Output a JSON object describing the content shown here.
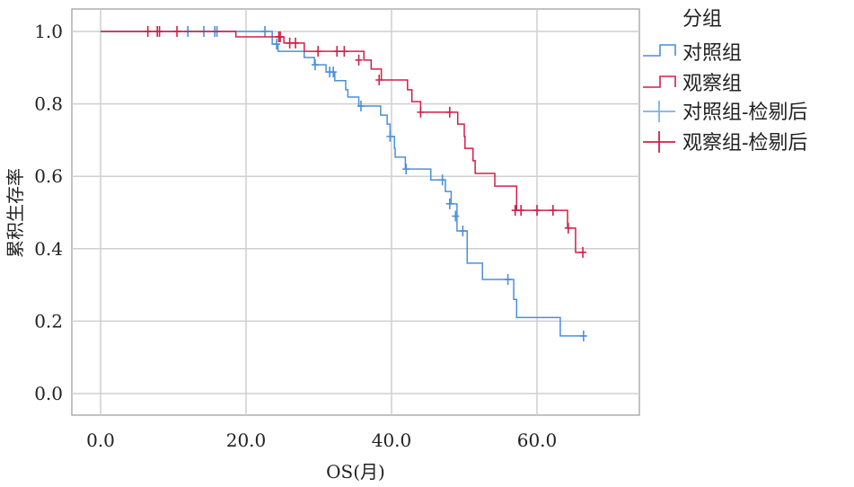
{
  "chart_data": {
    "type": "line",
    "subtype": "kaplan-meier",
    "xlabel": "OS(月)",
    "ylabel": "累积生存率",
    "xlim": [
      -4,
      74
    ],
    "ylim": [
      -0.06,
      1.06
    ],
    "xticks": [
      "0.0",
      "20.0",
      "40.0",
      "60.0"
    ],
    "xtick_values": [
      0,
      20,
      40,
      60
    ],
    "yticks": [
      "0.0",
      "0.2",
      "0.4",
      "0.6",
      "0.8",
      "1.0"
    ],
    "ytick_values": [
      0,
      0.2,
      0.4,
      0.6,
      0.8,
      1.0
    ],
    "grid": true,
    "legend_title": "分组",
    "legend_position": "right",
    "series": [
      {
        "name": "对照组",
        "censor_name": "对照组-检剔后",
        "color": "#4a90d9",
        "steps": [
          [
            0,
            1.0
          ],
          [
            23.6,
            0.965
          ],
          [
            24.4,
            0.945
          ],
          [
            28.0,
            0.928
          ],
          [
            29.4,
            0.908
          ],
          [
            31.0,
            0.888
          ],
          [
            32.2,
            0.864
          ],
          [
            33.7,
            0.839
          ],
          [
            34.0,
            0.819
          ],
          [
            35.5,
            0.794
          ],
          [
            38.5,
            0.769
          ],
          [
            39.4,
            0.744
          ],
          [
            39.8,
            0.71
          ],
          [
            40.4,
            0.677
          ],
          [
            40.5,
            0.653
          ],
          [
            41.9,
            0.62
          ],
          [
            45.4,
            0.59
          ],
          [
            47.4,
            0.558
          ],
          [
            48.2,
            0.524
          ],
          [
            49.0,
            0.449
          ],
          [
            50.4,
            0.36
          ],
          [
            52.5,
            0.315
          ],
          [
            56.8,
            0.26
          ],
          [
            57.2,
            0.21
          ],
          [
            63.2,
            0.159
          ],
          [
            66.4,
            0.159
          ]
        ],
        "censored": [
          [
            12.0,
            1.0
          ],
          [
            14.2,
            1.0
          ],
          [
            15.7,
            1.0
          ],
          [
            16.0,
            1.0
          ],
          [
            22.6,
            1.0
          ],
          [
            24.2,
            0.965
          ],
          [
            29.5,
            0.908
          ],
          [
            31.5,
            0.888
          ],
          [
            32.0,
            0.888
          ],
          [
            35.8,
            0.794
          ],
          [
            39.8,
            0.71
          ],
          [
            42.0,
            0.62
          ],
          [
            47.0,
            0.59
          ],
          [
            48.0,
            0.524
          ],
          [
            48.8,
            0.49
          ],
          [
            49.8,
            0.449
          ],
          [
            56.0,
            0.315
          ],
          [
            66.4,
            0.159
          ]
        ]
      },
      {
        "name": "观察组",
        "censor_name": "观察组-检剔后",
        "color": "#d0204a",
        "steps": [
          [
            0,
            1.0
          ],
          [
            18.6,
            0.985
          ],
          [
            25.2,
            0.968
          ],
          [
            28.0,
            0.945
          ],
          [
            36.2,
            0.921
          ],
          [
            37.2,
            0.896
          ],
          [
            38.6,
            0.866
          ],
          [
            42.2,
            0.839
          ],
          [
            42.8,
            0.806
          ],
          [
            44.0,
            0.777
          ],
          [
            49.1,
            0.744
          ],
          [
            50.0,
            0.71
          ],
          [
            50.1,
            0.677
          ],
          [
            51.2,
            0.643
          ],
          [
            51.5,
            0.608
          ],
          [
            54.2,
            0.573
          ],
          [
            57.2,
            0.506
          ],
          [
            64.2,
            0.457
          ],
          [
            65.3,
            0.39
          ],
          [
            66.3,
            0.39
          ]
        ],
        "censored": [
          [
            6.5,
            1.0
          ],
          [
            7.8,
            1.0
          ],
          [
            8.1,
            1.0
          ],
          [
            10.5,
            1.0
          ],
          [
            24.5,
            0.985
          ],
          [
            24.7,
            0.985
          ],
          [
            26.0,
            0.968
          ],
          [
            26.8,
            0.968
          ],
          [
            29.9,
            0.945
          ],
          [
            32.5,
            0.945
          ],
          [
            33.5,
            0.945
          ],
          [
            35.5,
            0.921
          ],
          [
            38.3,
            0.866
          ],
          [
            44.0,
            0.777
          ],
          [
            48.0,
            0.777
          ],
          [
            57.0,
            0.506
          ],
          [
            57.8,
            0.506
          ],
          [
            60.0,
            0.506
          ],
          [
            62.2,
            0.506
          ],
          [
            64.3,
            0.457
          ],
          [
            66.3,
            0.39
          ]
        ]
      }
    ]
  }
}
